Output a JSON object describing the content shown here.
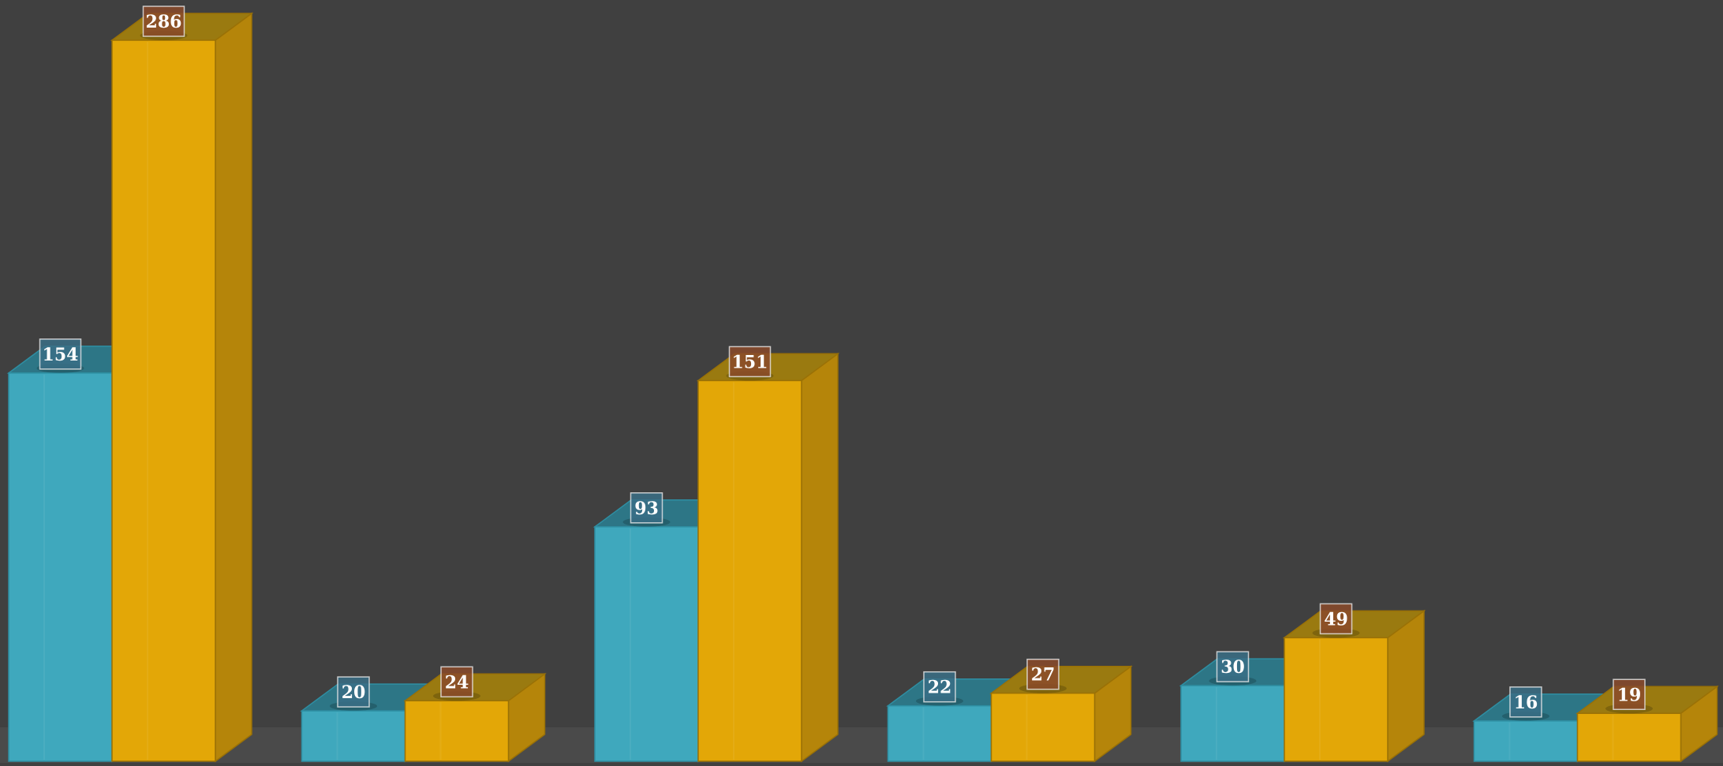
{
  "chart_data": {
    "type": "bar",
    "title": "",
    "xlabel": "",
    "ylabel": "",
    "categories": [
      "",
      "",
      "",
      "",
      "",
      ""
    ],
    "series": [
      {
        "values": [
          154,
          20,
          93,
          22,
          30,
          16
        ]
      },
      {
        "values": [
          286,
          24,
          151,
          27,
          49,
          19
        ]
      }
    ],
    "ylim": [
      0,
      286
    ],
    "grid": false,
    "legend": "none",
    "style": "3d",
    "colors": {
      "background": "#404040",
      "floor": "#4a4a4a",
      "series": [
        {
          "front": "#3fa8bd",
          "side": "#2f8091",
          "top": "#2d7686",
          "edge": "#2e8ea2",
          "label_bg": "#3a6e86"
        },
        {
          "front": "#e3a707",
          "side": "#b5850a",
          "top": "#9a7a10",
          "edge": "#9a7106",
          "label_bg": "#8a4a2a"
        }
      ]
    }
  }
}
